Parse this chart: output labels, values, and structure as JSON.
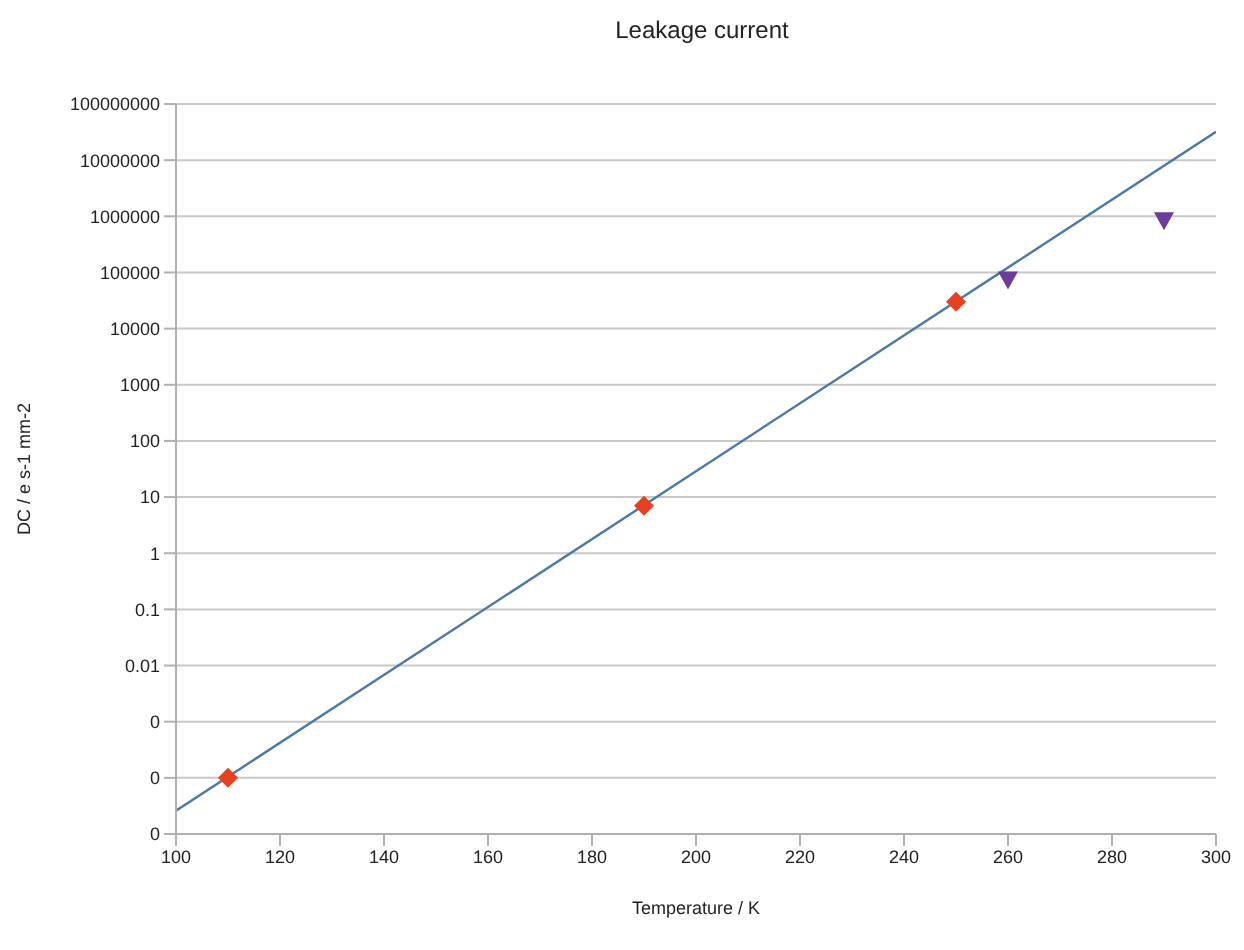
{
  "chart_data": {
    "type": "scatter",
    "title": "Leakage current",
    "xlabel": "Temperature / K",
    "ylabel": "DC / e s-1 mm-2",
    "log": "y",
    "grid": "y",
    "xlim": [
      100,
      300
    ],
    "xticks": [
      100,
      120,
      140,
      160,
      180,
      200,
      220,
      240,
      260,
      280,
      300
    ],
    "ylim": [
      1e-05,
      100000000
    ],
    "yticks": [
      {
        "value": 1e-05,
        "label": "0"
      },
      {
        "value": 0.0001,
        "label": "0"
      },
      {
        "value": 0.001,
        "label": "0"
      },
      0.01,
      0.1,
      1,
      10,
      100,
      1000,
      10000,
      100000,
      1000000,
      10000000,
      100000000
    ],
    "series": [
      {
        "type": "line",
        "color": "#4a7aa8",
        "x": [
          100,
          300
        ],
        "values": [
          2.6e-05,
          32000000
        ],
        "marker": "none",
        "line_style": "solid"
      },
      {
        "color": "#e8401e",
        "x": [
          110,
          190,
          250
        ],
        "values": [
          0.0001,
          7,
          30000
        ],
        "marker": "diamond"
      },
      {
        "color": "#6a3d9a",
        "x": [
          260,
          290
        ],
        "values": [
          75000,
          850000
        ],
        "marker": "triangle"
      }
    ]
  }
}
